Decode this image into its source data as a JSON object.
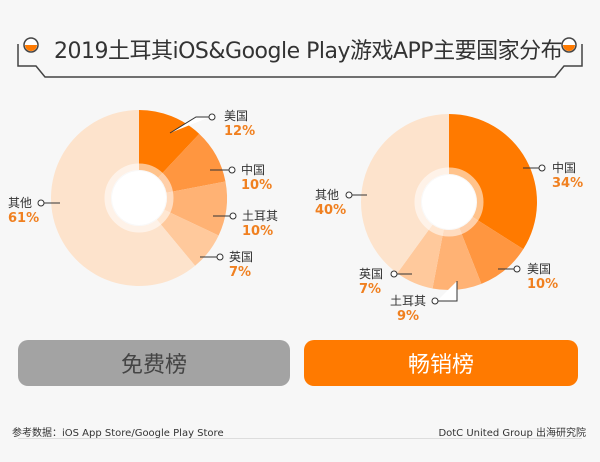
{
  "title": "2019土耳其iOS&Google Play游戏APP主要国家分布",
  "colors": {
    "accent": "#ff7a00",
    "slices": [
      "#ff7a00",
      "#ff9640",
      "#ffb274",
      "#ffc99c",
      "#fde3cc"
    ]
  },
  "chart_data": [
    {
      "type": "pie",
      "style": "donut",
      "categories": [
        "美国",
        "中国",
        "土耳其",
        "英国",
        "其他"
      ],
      "values": [
        12,
        10,
        10,
        7,
        61
      ],
      "labels": [
        "12%",
        "10%",
        "10%",
        "7%",
        "61%"
      ],
      "caption": "免费榜"
    },
    {
      "type": "pie",
      "style": "donut",
      "categories": [
        "中国",
        "美国",
        "土耳其",
        "英国",
        "其他"
      ],
      "values": [
        34,
        10,
        9,
        7,
        40
      ],
      "labels": [
        "34%",
        "10%",
        "9%",
        "7%",
        "40%"
      ],
      "caption": "畅销榜"
    }
  ],
  "footer": {
    "source": "参考数据：iOS App Store/Google Play Store",
    "credit": "DotC United Group  出海研究院"
  }
}
